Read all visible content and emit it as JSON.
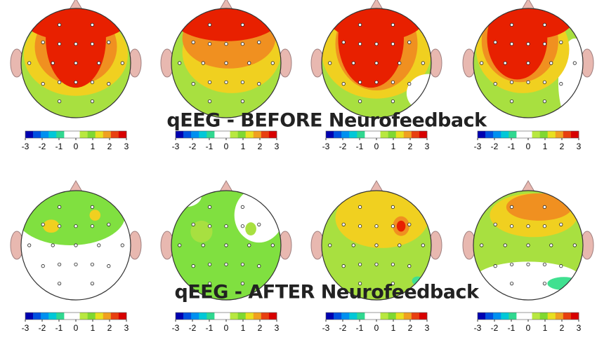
{
  "titles": [
    "qEEG - BEFORE Neurofeedback",
    "qEEG - AFTER Neurofeedback"
  ],
  "colorbar": {
    "ticks": [
      -3,
      -2,
      -1,
      0,
      1,
      2,
      3
    ],
    "colors": [
      "#0000b0",
      "#0050e0",
      "#0090f0",
      "#00c8d8",
      "#30d890",
      "#ffffff",
      "#ffffff",
      "#b8e840",
      "#80d830",
      "#e8e020",
      "#f0a020",
      "#e84010",
      "#d80000"
    ]
  }
}
